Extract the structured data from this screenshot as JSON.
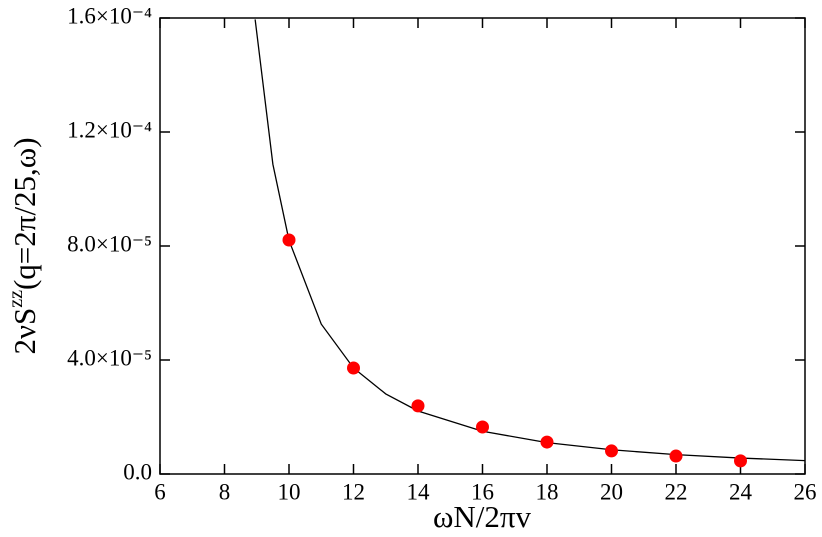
{
  "chart_data": {
    "type": "scatter",
    "x_label": "ωN/2πv",
    "y_label": [
      "2νS",
      "zz",
      "(q=2π/25,ω)"
    ],
    "xlim": [
      6,
      26
    ],
    "ylim": [
      0,
      0.00016
    ],
    "xticks": [
      6,
      8,
      10,
      12,
      14,
      16,
      18,
      20,
      22,
      24,
      26
    ],
    "yticks": [
      {
        "value": 0,
        "label": "0.0"
      },
      {
        "value": 4e-05,
        "label": "4.0×10⁻⁵"
      },
      {
        "value": 8e-05,
        "label": "8.0×10⁻⁵"
      },
      {
        "value": 0.00012,
        "label": "1.2×10⁻⁴"
      },
      {
        "value": 0.00016,
        "label": "1.6×10⁻⁴"
      }
    ],
    "series": [
      {
        "kind": "line",
        "color": "#000000",
        "x": [
          8.95,
          9.5,
          10,
          11,
          12,
          13,
          14,
          16,
          18,
          20,
          22,
          24,
          26
        ],
        "values": [
          0.0001595,
          0.0001087,
          8.2e-05,
          5.26e-05,
          3.72e-05,
          2.81e-05,
          2.21e-05,
          1.5e-05,
          1.1e-05,
          8.5e-06,
          6.8e-06,
          5.6e-06,
          4.7e-06
        ]
      },
      {
        "kind": "marker",
        "color": "#ff0000",
        "x": [
          10,
          12,
          14,
          16,
          18,
          20,
          22,
          24
        ],
        "values": [
          8.21e-05,
          3.72e-05,
          2.39e-05,
          1.65e-05,
          1.12e-05,
          8.1e-06,
          6.3e-06,
          4.6e-06
        ]
      }
    ]
  }
}
